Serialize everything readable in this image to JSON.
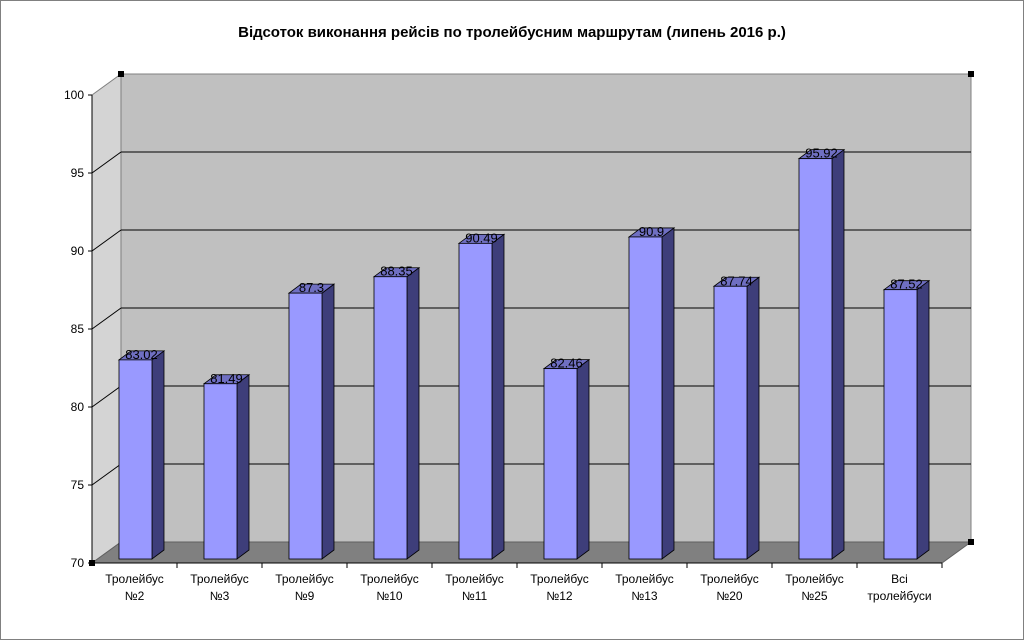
{
  "chart_data": {
    "type": "bar",
    "title": "Відсоток виконання рейсів по тролейбусним маршрутам (липень 2016 р.)",
    "categories": [
      [
        "Тролейбус",
        "№2"
      ],
      [
        "Тролейбус",
        "№3"
      ],
      [
        "Тролейбус",
        "№9"
      ],
      [
        "Тролейбус",
        "№10"
      ],
      [
        "Тролейбус",
        "№11"
      ],
      [
        "Тролейбус",
        "№12"
      ],
      [
        "Тролейбус",
        "№13"
      ],
      [
        "Тролейбус",
        "№20"
      ],
      [
        "Тролейбус",
        "№25"
      ],
      [
        "Всі",
        "тролейбуси"
      ]
    ],
    "values": [
      83.02,
      81.49,
      87.3,
      88.35,
      90.49,
      82.46,
      90.9,
      87.74,
      95.92,
      87.52
    ],
    "value_labels": [
      "83.02",
      "81.49",
      "87.3",
      "88.35",
      "90.49",
      "82.46",
      "90.9",
      "87.74",
      "95.92",
      "87.52"
    ],
    "ylim": [
      70,
      100
    ],
    "yticks": [
      70,
      75,
      80,
      85,
      90,
      95,
      100
    ],
    "grid": true,
    "style": "3d-column",
    "colors": {
      "bar_front": "#9999ff",
      "bar_side": "#3e3e7a",
      "bar_top": "#6f6fc2",
      "back_wall": "#c0c0c0",
      "side_wall": "#d4d4d4",
      "floor": "#808080",
      "gridline": "#000000"
    }
  }
}
